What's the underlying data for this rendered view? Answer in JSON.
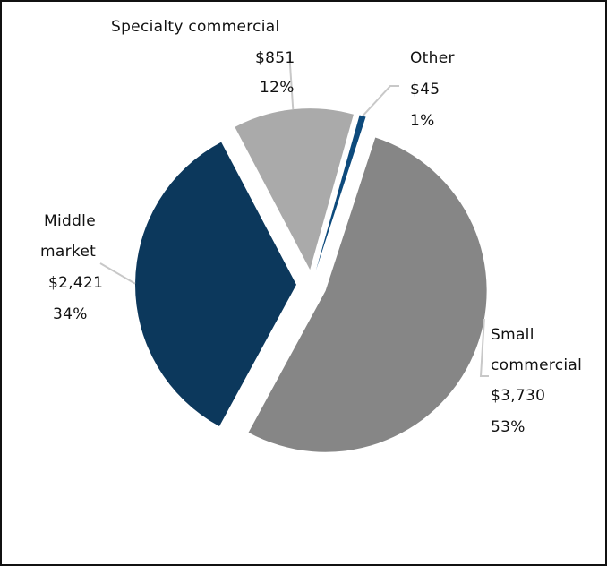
{
  "chart_data": {
    "type": "pie",
    "title": "",
    "slices": [
      {
        "name": "Small commercial",
        "label_lines": [
          "Small",
          "commercial"
        ],
        "value": 3730,
        "value_label": "$3,730",
        "percent_label": "53%",
        "color": "#868686"
      },
      {
        "name": "Middle market",
        "label_lines": [
          "Middle",
          "market"
        ],
        "value": 2421,
        "value_label": "$2,421",
        "percent_label": "34%",
        "color": "#0c385c"
      },
      {
        "name": "Specialty commercial",
        "label_lines": [
          "Specialty commercial"
        ],
        "value": 851,
        "value_label": "$851",
        "percent_label": "12%",
        "color": "#aaaaaa"
      },
      {
        "name": "Other",
        "label_lines": [
          "Other"
        ],
        "value": 45,
        "value_label": "$45",
        "percent_label": "1%",
        "color": "#0d4a7c"
      }
    ],
    "exploded": true,
    "legend": "none",
    "leader_line_color": "#c8c8c8"
  }
}
